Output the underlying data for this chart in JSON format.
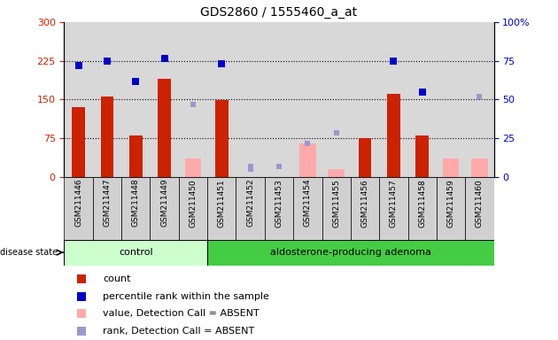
{
  "title": "GDS2860 / 1555460_a_at",
  "samples": [
    "GSM211446",
    "GSM211447",
    "GSM211448",
    "GSM211449",
    "GSM211450",
    "GSM211451",
    "GSM211452",
    "GSM211453",
    "GSM211454",
    "GSM211455",
    "GSM211456",
    "GSM211457",
    "GSM211458",
    "GSM211459",
    "GSM211460"
  ],
  "n_control": 5,
  "n_adenoma": 10,
  "count_values": [
    135,
    155,
    80,
    190,
    null,
    148,
    null,
    null,
    null,
    null,
    75,
    160,
    80,
    null,
    null
  ],
  "pct_values": [
    215,
    225,
    185,
    230,
    null,
    220,
    null,
    null,
    null,
    null,
    null,
    225,
    165,
    null,
    null
  ],
  "absent_bar_vals": [
    null,
    null,
    null,
    null,
    35,
    null,
    null,
    null,
    65,
    15,
    null,
    null,
    null,
    35,
    35
  ],
  "absent_dot_vals": [
    null,
    null,
    null,
    null,
    140,
    null,
    15,
    20,
    null,
    85,
    null,
    null,
    null,
    null,
    155
  ],
  "absent_dot_vals2": [
    null,
    null,
    null,
    null,
    null,
    null,
    20,
    20,
    65,
    null,
    null,
    null,
    null,
    null,
    155
  ],
  "ylim_left": [
    0,
    300
  ],
  "ylim_right": [
    0,
    100
  ],
  "yticks_left": [
    0,
    75,
    150,
    225,
    300
  ],
  "yticks_right": [
    0,
    25,
    50,
    75,
    100
  ],
  "bar_color": "#cc2200",
  "dot_color": "#0000cc",
  "absent_bar_color": "#ffaaaa",
  "absent_dot_color": "#9999cc",
  "bg_plot": "#d8d8d8",
  "bg_label_cell": "#d0d0d0",
  "bg_control": "#ccffcc",
  "bg_adenoma": "#44cc44",
  "label_control": "control",
  "label_adenoma": "aldosterone-producing adenoma",
  "disease_state_label": "disease state"
}
